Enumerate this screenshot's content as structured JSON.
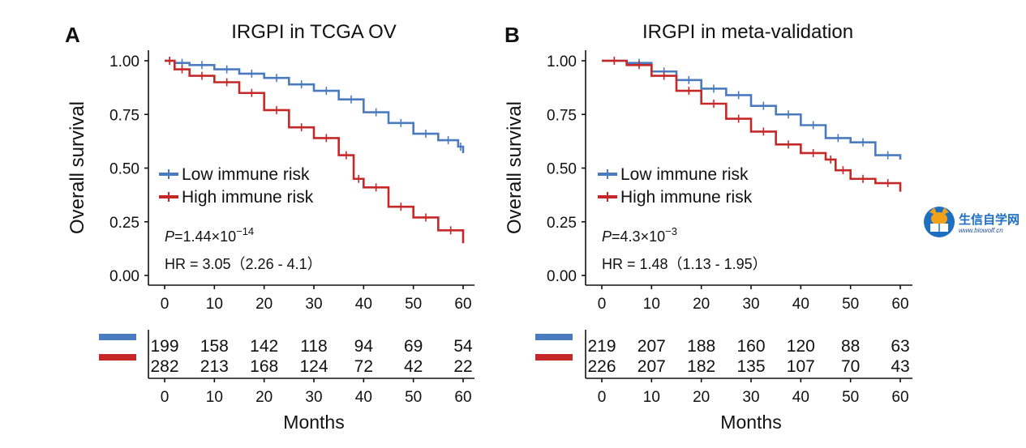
{
  "colors": {
    "low": "#4b7bbf",
    "high": "#c62828",
    "axis": "#111111"
  },
  "watermark": {
    "text_cn": "生信自学网",
    "url": "www.biowolf.cn",
    "icon": "fox-book-logo-icon"
  },
  "chart_data": [
    {
      "type": "line",
      "panel": "A",
      "title": "IRGPI in TCGA OV",
      "xlabel": "Months",
      "ylabel": "Overall survival",
      "xlim": [
        0,
        60
      ],
      "ylim": [
        0,
        1
      ],
      "xticks": [
        "0",
        "10",
        "20",
        "30",
        "40",
        "50",
        "60"
      ],
      "yticks": [
        "0.00",
        "0.25",
        "0.50",
        "0.75",
        "1.00"
      ],
      "legend": {
        "position": "left-middle",
        "entries": [
          "Low immune risk",
          "High immune risk"
        ]
      },
      "stats": {
        "p_prefix": "P",
        "p_mantissa": "=1.44",
        "p_times": "×10",
        "p_exp": "−14",
        "hr_text": "HR = 3.05（2.26 - 4.1）"
      },
      "series": [
        {
          "name": "Low immune risk",
          "color_key": "low",
          "x": [
            0,
            2,
            5,
            10,
            15,
            20,
            25,
            30,
            35,
            40,
            45,
            50,
            55,
            59,
            60
          ],
          "y": [
            1.0,
            0.99,
            0.98,
            0.96,
            0.94,
            0.92,
            0.89,
            0.86,
            0.82,
            0.76,
            0.71,
            0.66,
            0.63,
            0.6,
            0.57
          ]
        },
        {
          "name": "High immune risk",
          "color_key": "high",
          "x": [
            0,
            2,
            5,
            10,
            15,
            20,
            25,
            30,
            35,
            38,
            40,
            45,
            50,
            55,
            60
          ],
          "y": [
            1.0,
            0.96,
            0.93,
            0.9,
            0.85,
            0.77,
            0.69,
            0.64,
            0.56,
            0.45,
            0.41,
            0.32,
            0.27,
            0.21,
            0.15
          ]
        }
      ],
      "risk_table": {
        "times": [
          "0",
          "10",
          "20",
          "30",
          "40",
          "50",
          "60"
        ],
        "rows": [
          {
            "color_key": "low",
            "values": [
              "199",
              "158",
              "142",
              "118",
              "94",
              "69",
              "54"
            ]
          },
          {
            "color_key": "high",
            "values": [
              "282",
              "213",
              "168",
              "124",
              "72",
              "42",
              "22"
            ]
          }
        ]
      }
    },
    {
      "type": "line",
      "panel": "B",
      "title": "IRGPI in meta-validation",
      "xlabel": "Months",
      "ylabel": "Overall survival",
      "xlim": [
        0,
        60
      ],
      "ylim": [
        0,
        1
      ],
      "xticks": [
        "0",
        "10",
        "20",
        "30",
        "40",
        "50",
        "60"
      ],
      "yticks": [
        "0.00",
        "0.25",
        "0.50",
        "0.75",
        "1.00"
      ],
      "legend": {
        "position": "left-middle",
        "entries": [
          "Low immune risk",
          "High immune risk"
        ]
      },
      "stats": {
        "p_prefix": "P",
        "p_mantissa": "=4.3",
        "p_times": "×10",
        "p_exp": "−3",
        "hr_text": "HR = 1.48（1.13 - 1.95）"
      },
      "series": [
        {
          "name": "Low immune risk",
          "color_key": "low",
          "x": [
            0,
            5,
            10,
            15,
            20,
            25,
            30,
            35,
            40,
            45,
            50,
            55,
            60
          ],
          "y": [
            1.0,
            0.99,
            0.95,
            0.91,
            0.87,
            0.84,
            0.79,
            0.75,
            0.7,
            0.64,
            0.62,
            0.56,
            0.54
          ]
        },
        {
          "name": "High immune risk",
          "color_key": "high",
          "x": [
            0,
            5,
            10,
            15,
            20,
            25,
            30,
            35,
            40,
            45,
            47,
            50,
            55,
            60
          ],
          "y": [
            1.0,
            0.98,
            0.93,
            0.86,
            0.8,
            0.73,
            0.67,
            0.61,
            0.57,
            0.54,
            0.49,
            0.45,
            0.43,
            0.39
          ]
        }
      ],
      "risk_table": {
        "times": [
          "0",
          "10",
          "20",
          "30",
          "40",
          "50",
          "60"
        ],
        "rows": [
          {
            "color_key": "low",
            "values": [
              "219",
              "207",
              "188",
              "160",
              "120",
              "88",
              "63"
            ]
          },
          {
            "color_key": "high",
            "values": [
              "226",
              "207",
              "182",
              "135",
              "107",
              "70",
              "43"
            ]
          }
        ]
      }
    }
  ]
}
